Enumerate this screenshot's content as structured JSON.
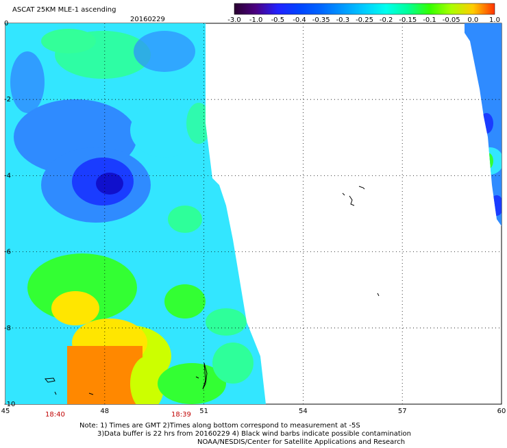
{
  "header": {
    "title": "ASCAT 25KM MLE-1 ascending",
    "date": "20160229"
  },
  "colorbar": {
    "labels": [
      "-3.0",
      "-1.0",
      "-0.5",
      "-0.4",
      "-0.35",
      "-0.3",
      "-0.25",
      "-0.2",
      "-0.15",
      "-0.1",
      "-0.05",
      "0.0",
      "1.0"
    ],
    "colors": [
      "#2a0030",
      "#4b0082",
      "#2222ff",
      "#0044ff",
      "#0066ff",
      "#0099ff",
      "#00ccff",
      "#00ffee",
      "#00ff99",
      "#33ff00",
      "#aaff00",
      "#ffcc00",
      "#ff3300"
    ]
  },
  "axes": {
    "x_ticks": [
      "45",
      "48",
      "51",
      "54",
      "57",
      "60"
    ],
    "y_ticks": [
      "0",
      "-2",
      "-4",
      "-6",
      "-8",
      "-10"
    ],
    "lon_range": [
      45,
      60
    ],
    "lat_range": [
      -10,
      0
    ]
  },
  "times": {
    "left": "18:40",
    "middle": "18:39"
  },
  "notes": {
    "line1": "Note: 1) Times are GMT 2)Times along bottom correspond to measurement at -5S",
    "line2": "3)Data buffer is 22 hrs from 20160229 4) Black wind barbs indicate possible contamination",
    "line3": "NOAA/NESDIS/Center for Satellite Applications and Research"
  },
  "swath_colors": {
    "blue_dark": "#1a3cff",
    "blue": "#2f8bff",
    "cyan": "#33e6ff",
    "cyan_green": "#2eff9a",
    "green": "#33ff33",
    "yellow_green": "#ccff00",
    "yellow": "#ffe600",
    "orange": "#ff8800"
  }
}
